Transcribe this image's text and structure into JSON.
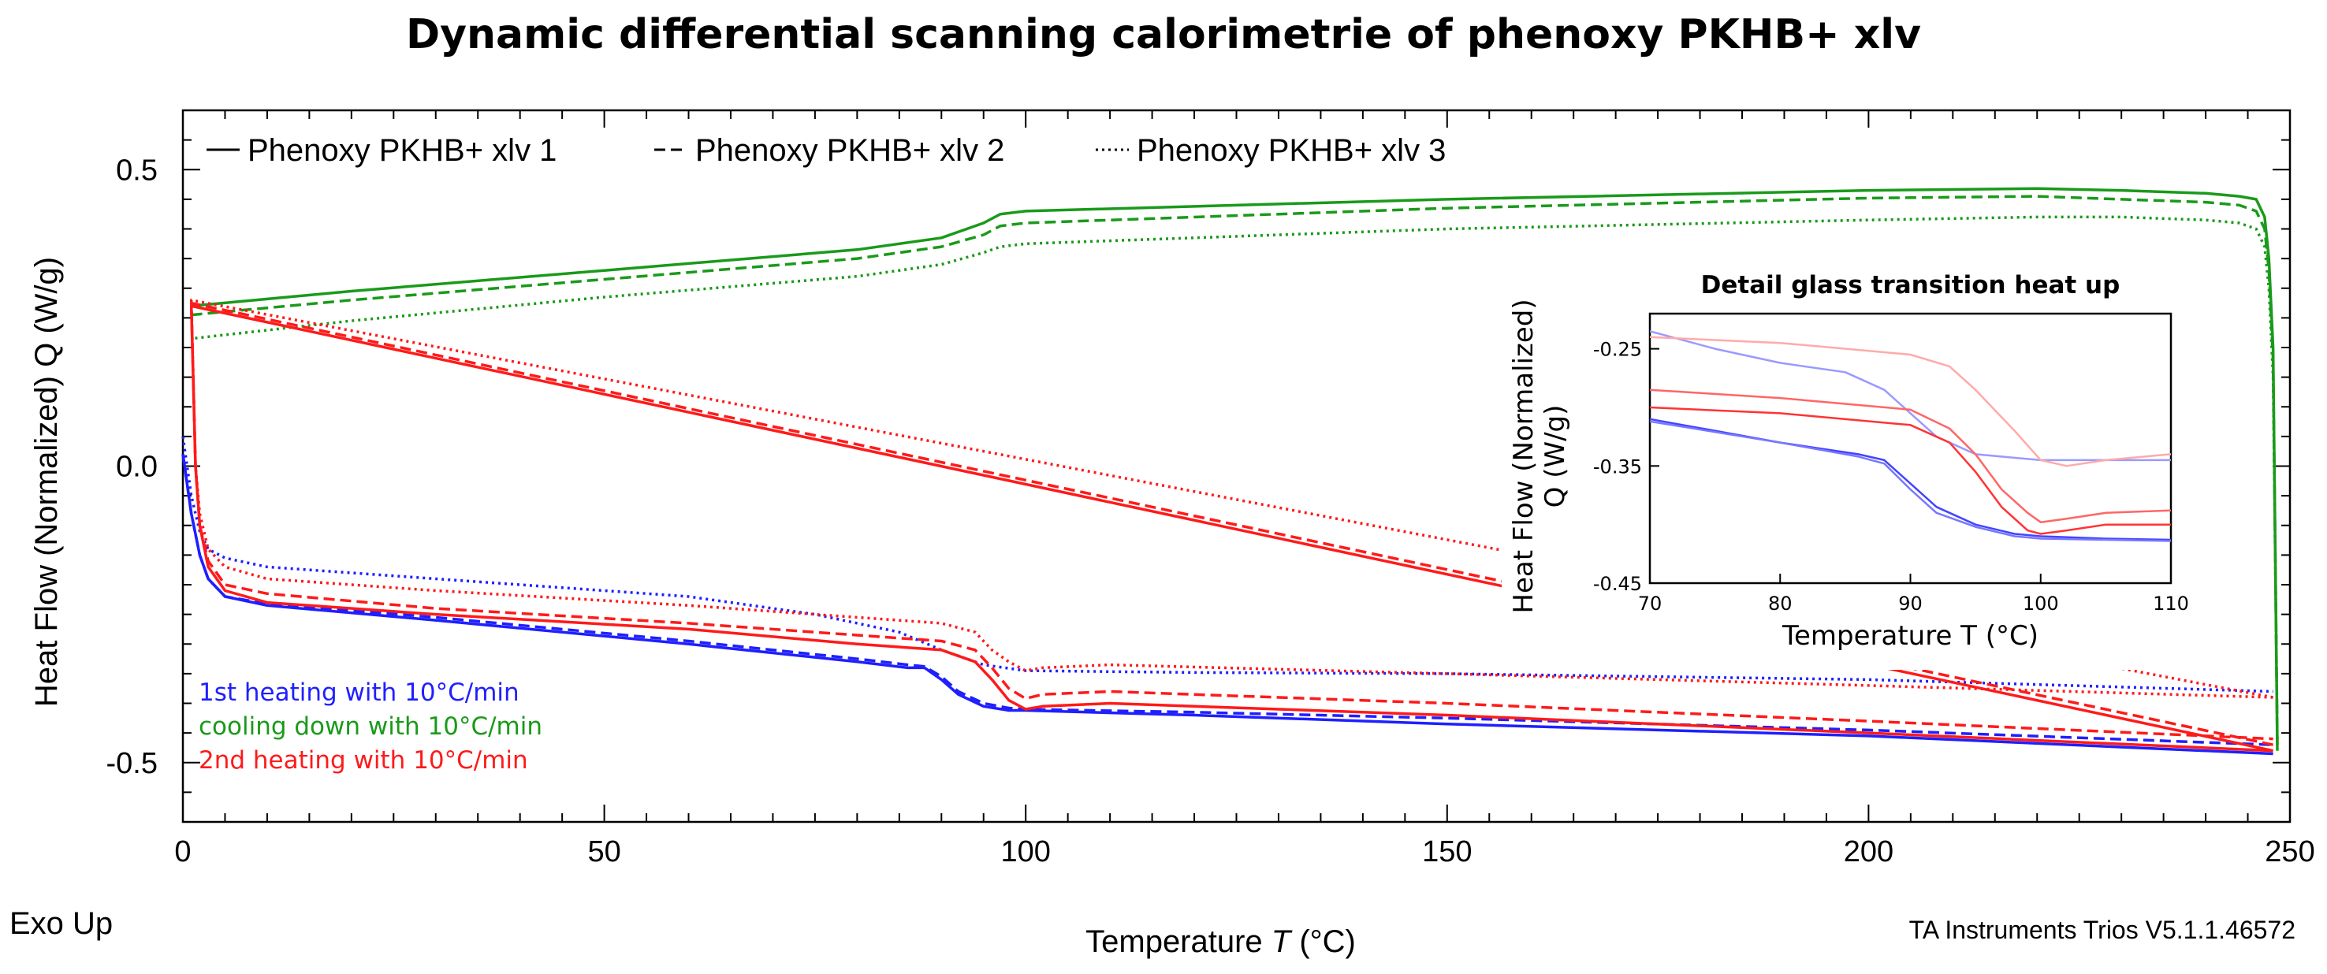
{
  "chart_data": {
    "type": "line",
    "title": "Dynamic differential scanning calorimetrie of phenoxy PKHB+ xlv",
    "xlabel_prefix": "Temperature ",
    "xlabel_symbol": "T",
    "xlabel_unit": " (°C)",
    "ylabel": "Heat Flow (Normalized) Q (W/g)",
    "xlim": [
      0,
      250
    ],
    "ylim": [
      -0.6,
      0.6
    ],
    "xticks": [
      0,
      50,
      100,
      150,
      200,
      250
    ],
    "yticks": [
      0.5,
      0.0,
      -0.5
    ],
    "ytick_labels": [
      "0.5",
      "0.0",
      "-0.5"
    ],
    "legend": [
      {
        "label": "Phenoxy PKHB+ xlv 1",
        "style": "solid"
      },
      {
        "label": "Phenoxy PKHB+ xlv 2",
        "style": "dashed"
      },
      {
        "label": "Phenoxy PKHB+ xlv 3",
        "style": "dotted"
      }
    ],
    "annotations": [
      {
        "text": "1st heating with 10°C/min",
        "color": "#1f1fff"
      },
      {
        "text": "cooling down with 10°C/min",
        "color": "#1a9a1a"
      },
      {
        "text": "2nd heating with 10°C/min",
        "color": "#ff1a1a"
      }
    ],
    "series": [
      {
        "name": "1st heating - xlv 1",
        "color": "#1f1fff",
        "style": "solid",
        "x": [
          0,
          1,
          2,
          3,
          5,
          10,
          30,
          60,
          80,
          86,
          88,
          90,
          92,
          95,
          98,
          100,
          120,
          150,
          200,
          248
        ],
        "y": [
          0.02,
          -0.08,
          -0.15,
          -0.19,
          -0.22,
          -0.235,
          -0.26,
          -0.3,
          -0.33,
          -0.34,
          -0.34,
          -0.36,
          -0.385,
          -0.405,
          -0.412,
          -0.412,
          -0.42,
          -0.435,
          -0.455,
          -0.485
        ]
      },
      {
        "name": "1st heating - xlv 2",
        "color": "#1f1fff",
        "style": "dashed",
        "x": [
          0,
          1,
          2,
          3,
          5,
          10,
          30,
          60,
          80,
          86,
          88,
          90,
          92,
          95,
          98,
          100,
          120,
          150,
          200,
          248
        ],
        "y": [
          0.02,
          -0.08,
          -0.15,
          -0.19,
          -0.22,
          -0.232,
          -0.255,
          -0.295,
          -0.325,
          -0.335,
          -0.338,
          -0.355,
          -0.38,
          -0.4,
          -0.408,
          -0.41,
          -0.415,
          -0.425,
          -0.445,
          -0.47
        ]
      },
      {
        "name": "1st heating - xlv 3",
        "color": "#1f1fff",
        "style": "dotted",
        "x": [
          0,
          1,
          2,
          3,
          5,
          10,
          30,
          60,
          75,
          85,
          90,
          95,
          100,
          120,
          150,
          200,
          248
        ],
        "y": [
          0.05,
          -0.05,
          -0.11,
          -0.14,
          -0.155,
          -0.17,
          -0.19,
          -0.22,
          -0.25,
          -0.28,
          -0.31,
          -0.335,
          -0.345,
          -0.348,
          -0.35,
          -0.36,
          -0.38
        ]
      },
      {
        "name": "cooling - xlv 1",
        "color": "#1a9a1a",
        "style": "solid",
        "x": [
          248.5,
          248.3,
          248,
          247.5,
          247,
          246,
          244,
          240,
          230,
          220,
          200,
          150,
          100,
          97,
          95,
          90,
          80,
          50,
          20,
          1
        ],
        "y": [
          -0.48,
          -0.2,
          0.2,
          0.35,
          0.42,
          0.45,
          0.455,
          0.46,
          0.465,
          0.468,
          0.465,
          0.45,
          0.43,
          0.425,
          0.41,
          0.385,
          0.365,
          0.33,
          0.295,
          0.27
        ]
      },
      {
        "name": "cooling - xlv 2",
        "color": "#1a9a1a",
        "style": "dashed",
        "x": [
          248.5,
          248.3,
          248,
          247.5,
          247,
          246,
          244,
          240,
          230,
          220,
          200,
          150,
          100,
          97,
          95,
          90,
          80,
          50,
          20,
          1
        ],
        "y": [
          -0.47,
          -0.2,
          0.18,
          0.33,
          0.4,
          0.43,
          0.44,
          0.445,
          0.45,
          0.455,
          0.452,
          0.435,
          0.41,
          0.405,
          0.39,
          0.37,
          0.35,
          0.315,
          0.28,
          0.255
        ]
      },
      {
        "name": "cooling - xlv 3",
        "color": "#1a9a1a",
        "style": "dotted",
        "x": [
          248.5,
          248.3,
          248,
          247.5,
          247,
          246,
          244,
          240,
          230,
          220,
          200,
          150,
          100,
          97,
          95,
          90,
          80,
          50,
          20,
          1
        ],
        "y": [
          -0.46,
          -0.2,
          0.15,
          0.3,
          0.37,
          0.4,
          0.41,
          0.415,
          0.42,
          0.42,
          0.415,
          0.4,
          0.375,
          0.37,
          0.36,
          0.34,
          0.32,
          0.285,
          0.245,
          0.215
        ]
      },
      {
        "name": "2nd heating - xlv 1",
        "color": "#ff1a1a",
        "style": "solid",
        "x": [
          248,
          1,
          1.5,
          2,
          3,
          5,
          10,
          30,
          60,
          80,
          90,
          94,
          96,
          98,
          100,
          102,
          110,
          150,
          200,
          248
        ],
        "y": [
          -0.48,
          0.27,
          0.0,
          -0.1,
          -0.17,
          -0.21,
          -0.23,
          -0.25,
          -0.275,
          -0.3,
          -0.31,
          -0.33,
          -0.36,
          -0.395,
          -0.41,
          -0.405,
          -0.4,
          -0.42,
          -0.45,
          -0.48
        ]
      },
      {
        "name": "2nd heating - xlv 2",
        "color": "#ff1a1a",
        "style": "dashed",
        "x": [
          248,
          1,
          1.5,
          2,
          3,
          5,
          10,
          30,
          60,
          80,
          90,
          94,
          96,
          98,
          100,
          102,
          110,
          150,
          200,
          248
        ],
        "y": [
          -0.47,
          0.275,
          0.0,
          -0.1,
          -0.16,
          -0.2,
          -0.215,
          -0.24,
          -0.265,
          -0.285,
          -0.295,
          -0.31,
          -0.34,
          -0.375,
          -0.392,
          -0.385,
          -0.38,
          -0.4,
          -0.43,
          -0.46
        ]
      },
      {
        "name": "2nd heating - xlv 3",
        "color": "#ff1a1a",
        "style": "dotted",
        "x": [
          248,
          1,
          1.5,
          2,
          3,
          5,
          10,
          30,
          60,
          80,
          90,
          94,
          96,
          98,
          100,
          102,
          110,
          150,
          200,
          248
        ],
        "y": [
          -0.39,
          0.28,
          0.0,
          -0.08,
          -0.14,
          -0.17,
          -0.19,
          -0.21,
          -0.235,
          -0.255,
          -0.265,
          -0.28,
          -0.31,
          -0.33,
          -0.345,
          -0.34,
          -0.335,
          -0.35,
          -0.37,
          -0.39
        ]
      }
    ],
    "inset": {
      "title": "Detail glass transition heat up",
      "xlabel": "Temperature T (°C)",
      "ylabel_line1": "Heat Flow (Normalized)",
      "ylabel_line2": "Q (W/g)",
      "xlim": [
        70,
        110
      ],
      "ylim": [
        -0.45,
        -0.22
      ],
      "xticks": [
        70,
        80,
        90,
        100,
        110
      ],
      "yticks": [
        -0.25,
        -0.35,
        -0.45
      ],
      "ytick_labels": [
        "-0.25",
        "-0.35",
        "-0.45"
      ],
      "series": [
        {
          "color": "#4444ff",
          "x": [
            70,
            80,
            86,
            88,
            90,
            92,
            95,
            98,
            100,
            105,
            110
          ],
          "y": [
            -0.31,
            -0.33,
            -0.34,
            -0.345,
            -0.365,
            -0.385,
            -0.4,
            -0.408,
            -0.41,
            -0.412,
            -0.413
          ]
        },
        {
          "color": "#7777ff",
          "x": [
            70,
            80,
            86,
            88,
            90,
            92,
            95,
            98,
            100,
            105,
            110
          ],
          "y": [
            -0.312,
            -0.33,
            -0.342,
            -0.348,
            -0.37,
            -0.39,
            -0.402,
            -0.41,
            -0.412,
            -0.413,
            -0.414
          ]
        },
        {
          "color": "#9a9aff",
          "x": [
            70,
            75,
            80,
            85,
            88,
            90,
            92,
            95,
            100,
            110
          ],
          "y": [
            -0.235,
            -0.25,
            -0.262,
            -0.27,
            -0.285,
            -0.305,
            -0.325,
            -0.34,
            -0.345,
            -0.345
          ]
        },
        {
          "color": "#ff3333",
          "x": [
            70,
            80,
            90,
            93,
            95,
            97,
            99,
            100,
            102,
            105,
            110
          ],
          "y": [
            -0.3,
            -0.305,
            -0.315,
            -0.33,
            -0.355,
            -0.385,
            -0.405,
            -0.408,
            -0.405,
            -0.4,
            -0.4
          ]
        },
        {
          "color": "#ff6666",
          "x": [
            70,
            80,
            90,
            93,
            95,
            97,
            99,
            100,
            102,
            105,
            110
          ],
          "y": [
            -0.285,
            -0.292,
            -0.302,
            -0.318,
            -0.34,
            -0.37,
            -0.39,
            -0.398,
            -0.395,
            -0.39,
            -0.388
          ]
        },
        {
          "color": "#ffaaaa",
          "x": [
            70,
            80,
            90,
            93,
            95,
            98,
            100,
            102,
            105,
            110
          ],
          "y": [
            -0.24,
            -0.245,
            -0.255,
            -0.265,
            -0.285,
            -0.32,
            -0.345,
            -0.35,
            -0.345,
            -0.34
          ]
        }
      ]
    }
  },
  "footer": {
    "exo_label": "Exo Up",
    "software": "TA Instruments Trios V5.1.1.46572"
  }
}
